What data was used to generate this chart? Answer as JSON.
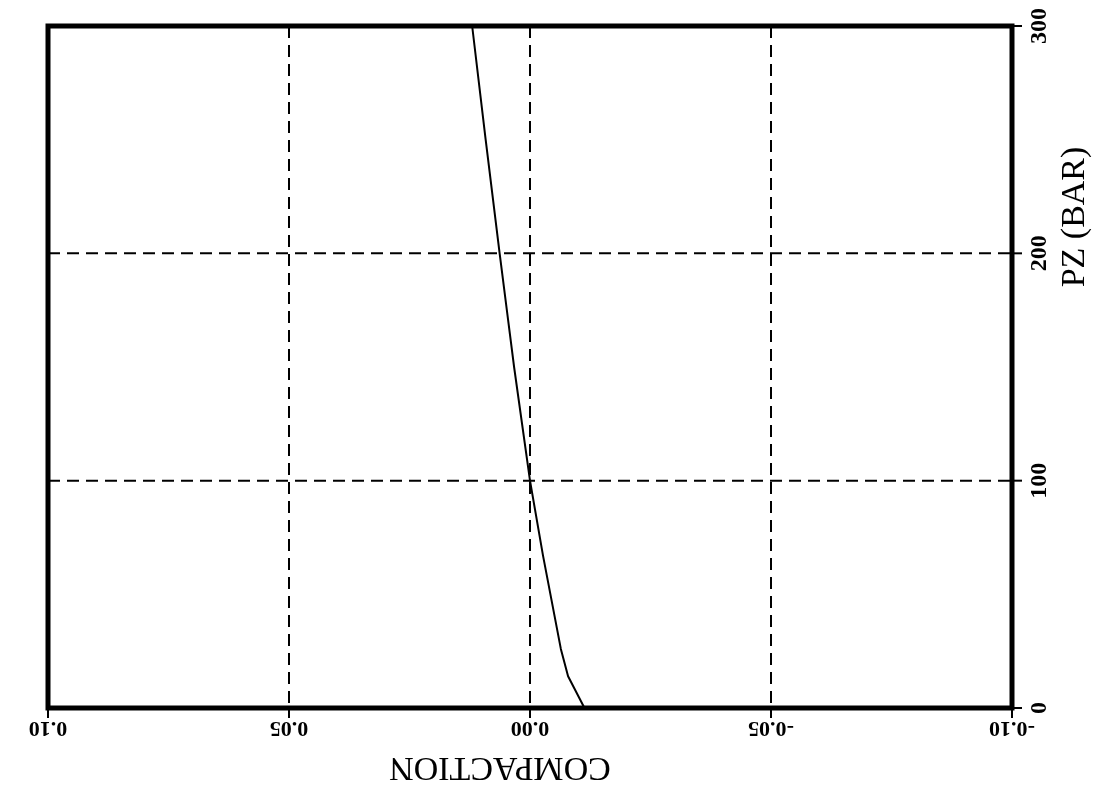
{
  "chart_data": {
    "type": "line",
    "xlabel": "COMPACTION",
    "ylabel": "PZ (BAR)",
    "series": [
      {
        "color": "#000000",
        "x": [
          -0.0113,
          -0.0079,
          -0.0064,
          -0.0027,
          0,
          0.0033,
          0.0063,
          0.0092,
          0.012
        ],
        "values": [
          0,
          14,
          26,
          67,
          100,
          150,
          200,
          250,
          300
        ]
      }
    ],
    "xlim": [
      0.1,
      -0.1
    ],
    "xticks": [
      {
        "value": 0.1,
        "label": "0.10"
      },
      {
        "value": 0.05,
        "label": "0.05"
      },
      {
        "value": 0,
        "label": "0.00"
      },
      {
        "value": -0.05,
        "label": "-0.05"
      },
      {
        "value": -0.1,
        "label": "-0.10"
      }
    ],
    "ylim": [
      0,
      300
    ],
    "yticks": [
      0,
      100,
      200,
      300
    ],
    "grid": true,
    "line_style": "solid",
    "marker": "none"
  }
}
